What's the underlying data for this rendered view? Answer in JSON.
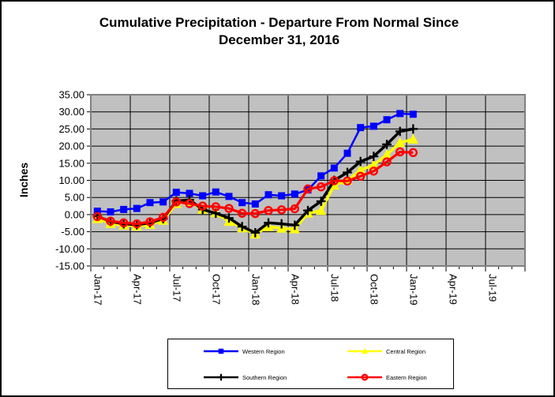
{
  "window": {
    "background_color": "#FFFFFF",
    "border_color": "#000000"
  },
  "chart_data": {
    "type": "line",
    "title": "Cumulative Precipitation - Departure From Normal Since December 31, 2016",
    "title_lines": [
      "Cumulative Precipitation - Departure From Normal Since",
      "December 31, 2016"
    ],
    "ylabel": "Inches",
    "xlabel": "",
    "ylim": [
      -15,
      35
    ],
    "ytick_step": 5,
    "ytick_labels": [
      "35.00",
      "30.00",
      "25.00",
      "20.00",
      "15.00",
      "10.00",
      "5.00",
      "0.00",
      "-5.00",
      "-10.00",
      "-15.00"
    ],
    "xtick_labels": [
      "Jan-17",
      "Apr-17",
      "Jul-17",
      "Oct-17",
      "Jan-18",
      "Apr-18",
      "Jul-18",
      "Oct-18",
      "Jan-19",
      "Apr-19",
      "Jul-19"
    ],
    "xtick_interval_months": 3,
    "x_axis_extent_months": 33,
    "grid": "major horizontal and vertical black gridlines on",
    "plot_bg_color": "#C0C0C0",
    "plot_border_color": "#808080",
    "gridline_color": "#000000",
    "legend_position": "bottom-center",
    "categories": [
      "Jan-17",
      "Feb-17",
      "Mar-17",
      "Apr-17",
      "May-17",
      "Jun-17",
      "Jul-17",
      "Aug-17",
      "Sep-17",
      "Oct-17",
      "Nov-17",
      "Dec-17",
      "Jan-18",
      "Feb-18",
      "Mar-18",
      "Apr-18",
      "May-18",
      "Jun-18",
      "Jul-18",
      "Aug-18",
      "Sep-18",
      "Oct-18",
      "Nov-18",
      "Dec-18",
      "Jan-19"
    ],
    "series": [
      {
        "name": "Western Region",
        "color": "#0000FF",
        "marker": "square",
        "values": [
          1.0,
          0.8,
          1.5,
          1.8,
          3.5,
          3.7,
          6.5,
          6.2,
          5.5,
          6.6,
          5.3,
          3.5,
          3.1,
          5.8,
          5.5,
          6.0,
          7.2,
          11.3,
          13.6,
          17.9,
          25.4,
          25.8,
          27.7,
          29.5,
          29.3
        ]
      },
      {
        "name": "Central Region",
        "color": "#FFFF00",
        "marker": "triangle",
        "values": [
          -1.2,
          -2.6,
          -3.1,
          -3.4,
          -2.9,
          -1.7,
          3.2,
          3.8,
          1.5,
          0.5,
          -2.0,
          -3.9,
          -5.7,
          -3.5,
          -4.0,
          -4.2,
          0.4,
          1.2,
          8.6,
          10.0,
          13.0,
          14.5,
          17.5,
          21.0,
          22.0
        ]
      },
      {
        "name": "Southern Region",
        "color": "#000000",
        "marker": "plus",
        "values": [
          -0.5,
          -2.0,
          -2.7,
          -3.0,
          -2.4,
          -1.2,
          4.0,
          4.3,
          1.5,
          0.4,
          -1.0,
          -3.5,
          -5.3,
          -2.4,
          -2.7,
          -3.1,
          1.2,
          3.9,
          10.0,
          12.3,
          15.5,
          17.0,
          20.5,
          24.3,
          25.0
        ]
      },
      {
        "name": "Eastern Region",
        "color": "#FF0000",
        "marker": "circle-open",
        "values": [
          -0.6,
          -1.9,
          -2.4,
          -2.7,
          -2.1,
          -0.8,
          3.7,
          3.2,
          2.5,
          2.3,
          1.8,
          0.4,
          0.3,
          1.2,
          1.4,
          1.7,
          7.5,
          8.1,
          9.9,
          9.8,
          11.2,
          12.7,
          15.4,
          18.3,
          18.1
        ]
      }
    ]
  }
}
